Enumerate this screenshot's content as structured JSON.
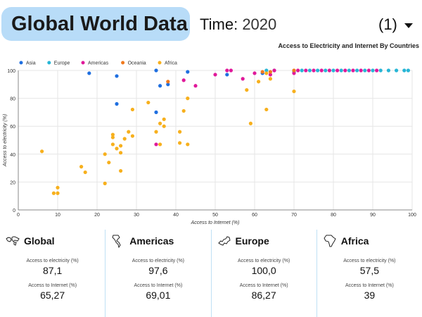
{
  "header": {
    "title": "Global World Data",
    "time_label": "Time:",
    "time_value": "2020",
    "page_selector": "(1)"
  },
  "chart_data": {
    "type": "scatter",
    "title": "Access to Electricity and Internet By Countries",
    "xlabel": "Access to Internet (%)",
    "ylabel": "Access to electricity (%)",
    "xlim": [
      0,
      100
    ],
    "ylim": [
      0,
      100
    ],
    "xticks": [
      "0",
      "10",
      "20",
      "30",
      "40",
      "50",
      "60",
      "70",
      "80",
      "90",
      "100"
    ],
    "yticks": [
      "0",
      "20",
      "40",
      "60",
      "80",
      "100"
    ],
    "legend_position": "top-left",
    "legend": [
      "Asia",
      "Europe",
      "Americas",
      "Oceania",
      "Africa"
    ],
    "colors": {
      "Asia": "#1f6fe0",
      "Europe": "#27b6d6",
      "Americas": "#e0199a",
      "Oceania": "#f07a1e",
      "Africa": "#f7b01d"
    },
    "series": [
      {
        "name": "Asia",
        "points": [
          [
            18,
            98
          ],
          [
            25,
            96
          ],
          [
            35,
            100
          ],
          [
            25,
            76
          ],
          [
            35,
            70
          ],
          [
            36,
            89
          ],
          [
            38,
            90
          ],
          [
            43,
            99
          ],
          [
            53,
            97
          ],
          [
            62,
            98
          ]
        ]
      },
      {
        "name": "Europe",
        "points": [
          [
            70,
            99
          ],
          [
            72,
            100
          ],
          [
            74,
            100
          ],
          [
            76,
            100
          ],
          [
            78,
            100
          ],
          [
            80,
            100
          ],
          [
            82,
            100
          ],
          [
            84,
            100
          ],
          [
            86,
            100
          ],
          [
            88,
            100
          ],
          [
            90,
            100
          ],
          [
            92,
            100
          ],
          [
            94,
            100
          ],
          [
            96,
            100
          ],
          [
            98,
            100
          ],
          [
            99,
            100
          ],
          [
            63,
            100
          ],
          [
            65,
            100
          ]
        ]
      },
      {
        "name": "Americas",
        "points": [
          [
            35,
            47
          ],
          [
            42,
            93
          ],
          [
            45,
            89
          ],
          [
            50,
            97
          ],
          [
            53,
            100
          ],
          [
            54,
            100
          ],
          [
            57,
            94
          ],
          [
            60,
            98
          ],
          [
            64,
            97
          ],
          [
            65,
            100
          ],
          [
            70,
            98
          ],
          [
            71,
            100
          ],
          [
            73,
            100
          ],
          [
            75,
            100
          ],
          [
            77,
            100
          ],
          [
            79,
            100
          ],
          [
            81,
            100
          ],
          [
            83,
            100
          ],
          [
            85,
            100
          ],
          [
            87,
            100
          ],
          [
            89,
            100
          ],
          [
            91,
            100
          ]
        ]
      },
      {
        "name": "Oceania",
        "points": [
          [
            38,
            92
          ],
          [
            62,
            99
          ],
          [
            64,
            99
          ],
          [
            70,
            100
          ]
        ]
      },
      {
        "name": "Africa",
        "points": [
          [
            6,
            42
          ],
          [
            9,
            12
          ],
          [
            10,
            16
          ],
          [
            10,
            12
          ],
          [
            16,
            31
          ],
          [
            17,
            27
          ],
          [
            22,
            40
          ],
          [
            22,
            19
          ],
          [
            23,
            34
          ],
          [
            24,
            47
          ],
          [
            24,
            52
          ],
          [
            24,
            54
          ],
          [
            25,
            44
          ],
          [
            26,
            28
          ],
          [
            26,
            41
          ],
          [
            26,
            46
          ],
          [
            27,
            51
          ],
          [
            28,
            56
          ],
          [
            29,
            53
          ],
          [
            29,
            72
          ],
          [
            33,
            77
          ],
          [
            35,
            56
          ],
          [
            36,
            47
          ],
          [
            36,
            62
          ],
          [
            37,
            60
          ],
          [
            37,
            65
          ],
          [
            41,
            48
          ],
          [
            41,
            56
          ],
          [
            42,
            71
          ],
          [
            43,
            47
          ],
          [
            43,
            80
          ],
          [
            58,
            86
          ],
          [
            59,
            62
          ],
          [
            61,
            92
          ],
          [
            63,
            72
          ],
          [
            63,
            98
          ],
          [
            64,
            94
          ],
          [
            70,
            85
          ]
        ]
      }
    ]
  },
  "panels": [
    {
      "name": "Global",
      "icon": "world-map-icon",
      "elec_label": "Access to electricity (%)",
      "elec_value": "87,1",
      "inet_label": "Access to Internet (%)",
      "inet_value": "65,27"
    },
    {
      "name": "Americas",
      "icon": "americas-map-icon",
      "elec_label": "Access to electricity (%)",
      "elec_value": "97,6",
      "inet_label": "Access to Internet (%)",
      "inet_value": "69,01"
    },
    {
      "name": "Europe",
      "icon": "europe-map-icon",
      "elec_label": "Access to electricity (%)",
      "elec_value": "100,0",
      "inet_label": "Access to Internet (%)",
      "inet_value": "86,27"
    },
    {
      "name": "Africa",
      "icon": "africa-map-icon",
      "elec_label": "Access to electricity (%)",
      "elec_value": "57,5",
      "inet_label": "Access to Internet (%)",
      "inet_value": "39"
    }
  ]
}
